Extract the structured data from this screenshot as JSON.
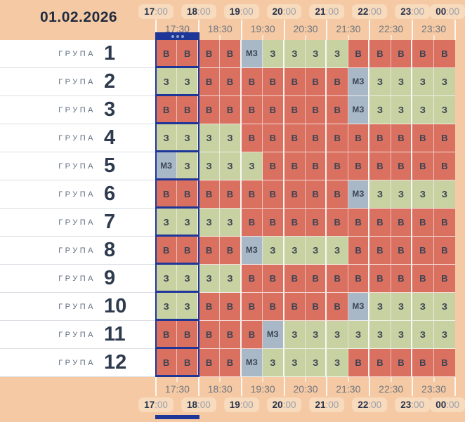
{
  "header": {
    "date": "01.02.2026"
  },
  "time_axis": {
    "hours": [
      "17:00",
      "18:00",
      "19:00",
      "20:00",
      "21:00",
      "22:00",
      "23:00",
      "00:00"
    ],
    "half_hours": [
      "17:30",
      "18:30",
      "19:30",
      "20:30",
      "21:30",
      "22:30",
      "23:30"
    ]
  },
  "current_time_marker": {
    "hour_block": "17:00",
    "dots": "•••"
  },
  "statuses": {
    "В": {
      "color": "#DA7060"
    },
    "З": {
      "color": "#C7D1A1"
    },
    "МЗ": {
      "color": "#A9B8C6"
    }
  },
  "colors": {
    "background": "#F5C9A3",
    "pill": "#F8DABD",
    "panel": "#FFFFFF",
    "outage": "#DA7060",
    "powered": "#C7D1A1",
    "maybe": "#A9B8C6",
    "marker": "#1F3699"
  },
  "group_label": "ГРУПА",
  "groups": [
    {
      "number": "1",
      "slots": [
        "В",
        "В",
        "В",
        "В",
        "МЗ",
        "З",
        "З",
        "З",
        "З",
        "В",
        "В",
        "В",
        "В",
        "В"
      ]
    },
    {
      "number": "2",
      "slots": [
        "З",
        "З",
        "В",
        "В",
        "В",
        "В",
        "В",
        "В",
        "В",
        "МЗ",
        "З",
        "З",
        "З",
        "З"
      ]
    },
    {
      "number": "3",
      "slots": [
        "В",
        "В",
        "В",
        "В",
        "В",
        "В",
        "В",
        "В",
        "В",
        "МЗ",
        "З",
        "З",
        "З",
        "З"
      ]
    },
    {
      "number": "4",
      "slots": [
        "З",
        "З",
        "З",
        "З",
        "В",
        "В",
        "В",
        "В",
        "В",
        "В",
        "В",
        "В",
        "В",
        "В"
      ]
    },
    {
      "number": "5",
      "slots": [
        "МЗ",
        "З",
        "З",
        "З",
        "З",
        "В",
        "В",
        "В",
        "В",
        "В",
        "В",
        "В",
        "В",
        "В"
      ]
    },
    {
      "number": "6",
      "slots": [
        "В",
        "В",
        "В",
        "В",
        "В",
        "В",
        "В",
        "В",
        "В",
        "МЗ",
        "З",
        "З",
        "З",
        "З"
      ]
    },
    {
      "number": "7",
      "slots": [
        "З",
        "З",
        "З",
        "З",
        "В",
        "В",
        "В",
        "В",
        "В",
        "В",
        "В",
        "В",
        "В",
        "В"
      ]
    },
    {
      "number": "8",
      "slots": [
        "В",
        "В",
        "В",
        "В",
        "МЗ",
        "З",
        "З",
        "З",
        "З",
        "В",
        "В",
        "В",
        "В",
        "В"
      ]
    },
    {
      "number": "9",
      "slots": [
        "З",
        "З",
        "З",
        "З",
        "В",
        "В",
        "В",
        "В",
        "В",
        "В",
        "В",
        "В",
        "В",
        "В"
      ]
    },
    {
      "number": "10",
      "slots": [
        "З",
        "З",
        "В",
        "В",
        "В",
        "В",
        "В",
        "В",
        "В",
        "МЗ",
        "З",
        "З",
        "З",
        "З"
      ]
    },
    {
      "number": "11",
      "slots": [
        "В",
        "В",
        "В",
        "В",
        "В",
        "МЗ",
        "З",
        "З",
        "З",
        "З",
        "З",
        "З",
        "З",
        "З"
      ]
    },
    {
      "number": "12",
      "slots": [
        "В",
        "В",
        "В",
        "В",
        "МЗ",
        "З",
        "З",
        "З",
        "З",
        "В",
        "В",
        "В",
        "В",
        "В"
      ]
    }
  ]
}
